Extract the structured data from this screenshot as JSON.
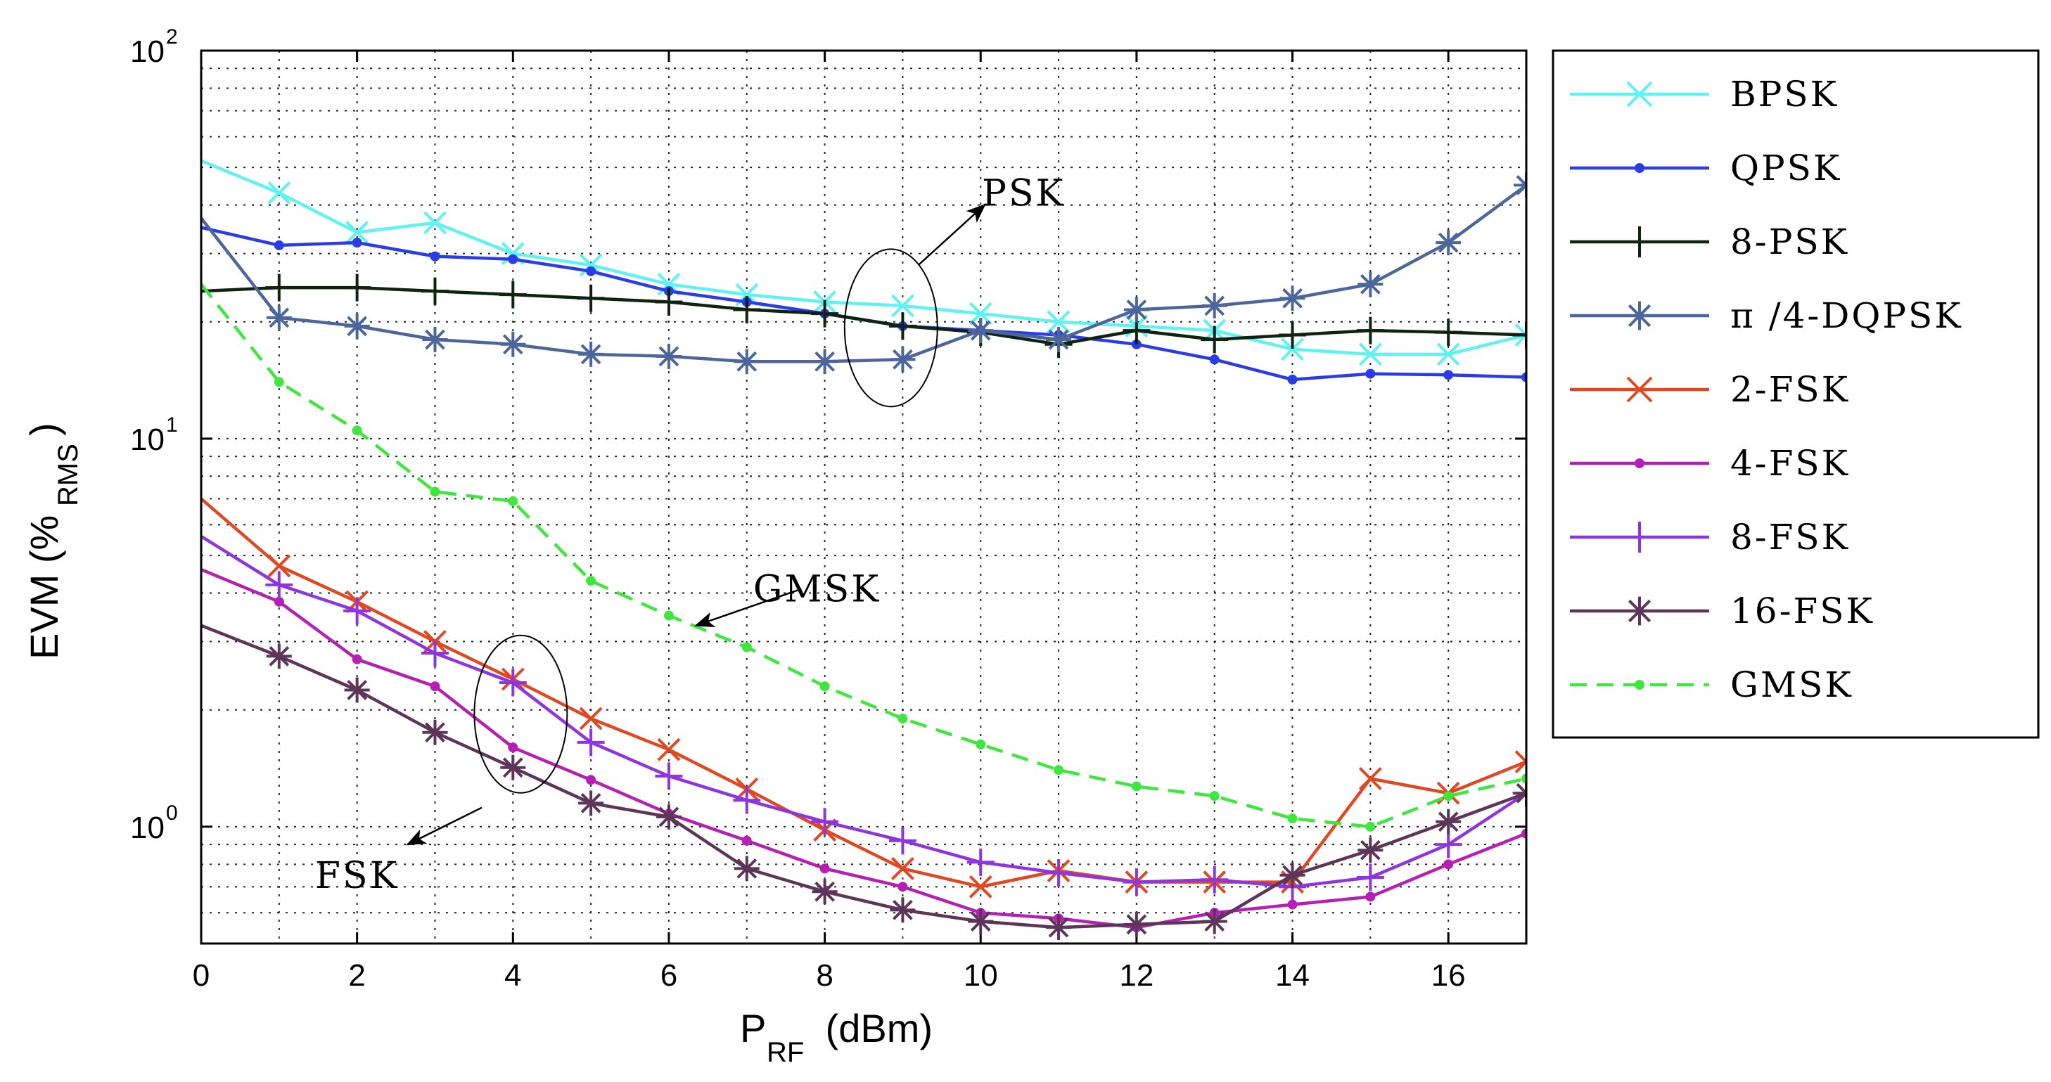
{
  "chart_data": {
    "type": "line",
    "title": "",
    "xlabel": {
      "main": "P",
      "sub": "RF",
      "unit": " (dBm)"
    },
    "ylabel": {
      "main": "EVM (%",
      "sub": "RMS",
      "close": ")"
    },
    "xlim": [
      0,
      17
    ],
    "ylim": [
      0.5,
      100
    ],
    "yscale": "log",
    "grid": true,
    "legend_position": "outside-right",
    "x_ticks": [
      "0",
      "2",
      "4",
      "6",
      "8",
      "10",
      "12",
      "14",
      "16"
    ],
    "y_ticks": [
      {
        "base": "10",
        "exp": "2"
      },
      {
        "base": "10",
        "exp": "1"
      },
      {
        "base": "10",
        "exp": "0"
      }
    ],
    "x": [
      0,
      1,
      2,
      3,
      4,
      5,
      6,
      7,
      8,
      9,
      10,
      11,
      12,
      13,
      14,
      15,
      16,
      17
    ],
    "series": [
      {
        "name": "BPSK",
        "color": "#5ff2f2",
        "marker": "x",
        "dash": false,
        "values": [
          52,
          43,
          34,
          36,
          30,
          28,
          25,
          23.5,
          22.5,
          22,
          21,
          20,
          19.5,
          19,
          17,
          16.5,
          16.5,
          18.5
        ]
      },
      {
        "name": "QPSK",
        "color": "#2a3ce8",
        "marker": "dot",
        "dash": false,
        "values": [
          35,
          31.5,
          32,
          29.5,
          29,
          27,
          24,
          22.5,
          21,
          19.5,
          19,
          18.5,
          17.5,
          16,
          14.2,
          14.7,
          14.6,
          14.4
        ]
      },
      {
        "name": "8-PSK",
        "color": "#0f2410",
        "marker": "plus",
        "dash": false,
        "values": [
          24,
          24.5,
          24.5,
          24,
          23.5,
          23,
          22.5,
          21.5,
          21,
          19.5,
          18.8,
          17.5,
          19,
          18,
          18.5,
          19,
          18.8,
          18.5
        ]
      },
      {
        "name": "π /4-DQPSK",
        "color": "#4c669c",
        "marker": "star",
        "dash": false,
        "values": [
          37,
          20.5,
          19.5,
          18,
          17.5,
          16.5,
          16.3,
          15.8,
          15.8,
          16,
          19,
          18,
          21.5,
          22,
          23,
          25,
          32,
          45
        ]
      },
      {
        "name": "2-FSK",
        "color": "#e04822",
        "marker": "x",
        "dash": false,
        "values": [
          7,
          4.7,
          3.8,
          3.0,
          2.4,
          1.9,
          1.58,
          1.25,
          0.98,
          0.78,
          0.7,
          0.77,
          0.72,
          0.72,
          0.72,
          1.33,
          1.22,
          1.47
        ]
      },
      {
        "name": "4-FSK",
        "color": "#b51fb3",
        "marker": "dot",
        "dash": false,
        "values": [
          4.6,
          3.8,
          2.7,
          2.3,
          1.6,
          1.32,
          1.08,
          0.92,
          0.78,
          0.7,
          0.6,
          0.58,
          0.55,
          0.6,
          0.63,
          0.66,
          0.8,
          0.96
        ]
      },
      {
        "name": "8-FSK",
        "color": "#8e35e0",
        "marker": "plus",
        "dash": false,
        "values": [
          5.6,
          4.2,
          3.6,
          2.8,
          2.35,
          1.65,
          1.35,
          1.17,
          1.03,
          0.92,
          0.81,
          0.76,
          0.72,
          0.73,
          0.7,
          0.74,
          0.9,
          1.22
        ]
      },
      {
        "name": "16-FSK",
        "color": "#5c3558",
        "marker": "star",
        "dash": false,
        "values": [
          3.3,
          2.75,
          2.25,
          1.75,
          1.42,
          1.15,
          1.06,
          0.78,
          0.68,
          0.61,
          0.57,
          0.55,
          0.56,
          0.57,
          0.75,
          0.87,
          1.03,
          1.22
        ]
      },
      {
        "name": "GMSK",
        "color": "#3ee63e",
        "marker": "dot",
        "dash": true,
        "values": [
          25,
          14,
          10.5,
          7.3,
          6.9,
          4.3,
          3.5,
          2.9,
          2.3,
          1.9,
          1.63,
          1.4,
          1.27,
          1.2,
          1.05,
          1.0,
          1.2,
          1.33
        ]
      }
    ],
    "annotations": [
      {
        "text": "PSK",
        "ellipse": {
          "x": 8.85,
          "y": 19.3
        },
        "text_at": {
          "x": 10.55,
          "y": 43
        },
        "arrow_from": {
          "x": 9.2,
          "y": 28
        },
        "arrow_to": {
          "x": 10.05,
          "y": 40
        }
      },
      {
        "text": "GMSK",
        "text_at": {
          "x": 7.9,
          "y": 4.1
        },
        "arrow_from": {
          "x": 7.7,
          "y": 4.1
        },
        "arrow_to": {
          "x": 6.35,
          "y": 3.3
        }
      },
      {
        "text": "FSK",
        "ellipse": {
          "x": 4.1,
          "y": 1.95
        },
        "text_at": {
          "x": 2.0,
          "y": 0.75
        },
        "arrow_from": {
          "x": 3.6,
          "y": 1.12
        },
        "arrow_to": {
          "x": 2.65,
          "y": 0.9
        }
      }
    ]
  }
}
